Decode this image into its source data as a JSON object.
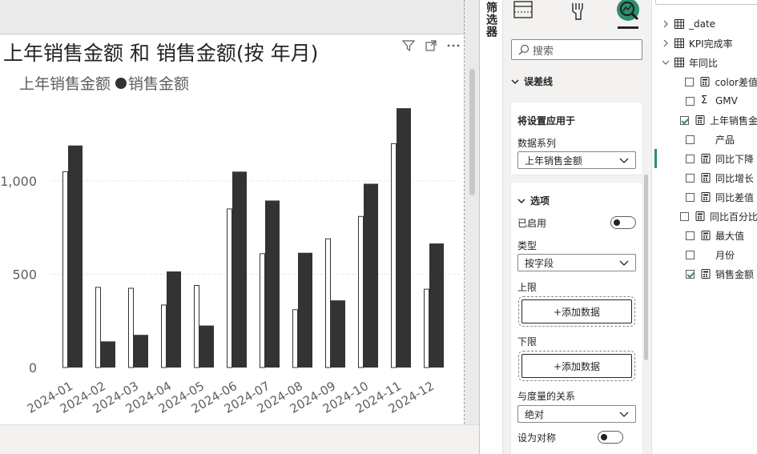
{
  "canvas": {
    "chart": {
      "title": "上年销售金额 和 销售金额(按 年月)",
      "legend": [
        {
          "name": "上年销售金额",
          "style": "outline"
        },
        {
          "name": "销售金额",
          "style": "filled"
        }
      ]
    }
  },
  "chart_data": {
    "type": "bar",
    "categories": [
      "2024-01",
      "2024-02",
      "2024-03",
      "2024-04",
      "2024-05",
      "2024-06",
      "2024-07",
      "2024-08",
      "2024-09",
      "2024-10",
      "2024-11",
      "2024-12"
    ],
    "series": [
      {
        "name": "上年销售金额",
        "values": [
          1050,
          430,
          425,
          335,
          440,
          850,
          610,
          310,
          690,
          810,
          1200,
          420
        ]
      },
      {
        "name": "销售金额",
        "values": [
          1190,
          140,
          175,
          515,
          225,
          1050,
          895,
          615,
          360,
          985,
          1390,
          665
        ]
      }
    ],
    "yticks": [
      "0",
      "500",
      "1,000"
    ],
    "ylim": [
      0,
      1500
    ],
    "grid": true,
    "legend_position": "top-left",
    "colors": {
      "current": "#333333",
      "previous_fill": "#ffffff",
      "previous_stroke": "#333333"
    }
  },
  "filter_rail": {
    "label": "筛选器"
  },
  "viz_pane": {
    "search_placeholder": "搜索",
    "section_error_bars": "误差线",
    "apply_card": {
      "title": "将设置应用于",
      "series_label": "数据系列",
      "series_value": "上年销售金额"
    },
    "options_card": {
      "title": "选项",
      "enabled_label": "已启用",
      "type_label": "类型",
      "type_value": "按字段",
      "upper_label": "上限",
      "upper_button": "+添加数据",
      "lower_label": "下限",
      "lower_button": "+添加数据",
      "relation_label": "与度量的关系",
      "relation_value": "绝对",
      "symmetric_label": "设为对称"
    },
    "accent": "#2d8f6f"
  },
  "data_pane": {
    "items": [
      {
        "label": "_date",
        "kind": "table"
      },
      {
        "label": "KPI完成率",
        "kind": "table"
      },
      {
        "label": "年同比",
        "kind": "table-open"
      },
      {
        "label": "color差值",
        "kind": "measure",
        "checked": false
      },
      {
        "label": "GMV",
        "kind": "sum",
        "checked": false
      },
      {
        "label": "上年销售金",
        "kind": "measure",
        "checked": true
      },
      {
        "label": "产品",
        "kind": "field",
        "checked": false
      },
      {
        "label": "同比下降",
        "kind": "measure",
        "checked": false
      },
      {
        "label": "同比增长",
        "kind": "measure",
        "checked": false
      },
      {
        "label": "同比差值",
        "kind": "measure",
        "checked": false
      },
      {
        "label": "同比百分比",
        "kind": "measure",
        "checked": false
      },
      {
        "label": "最大值",
        "kind": "measure",
        "checked": false
      },
      {
        "label": "月份",
        "kind": "field",
        "checked": false
      },
      {
        "label": "销售金额",
        "kind": "measure",
        "checked": true
      }
    ]
  }
}
